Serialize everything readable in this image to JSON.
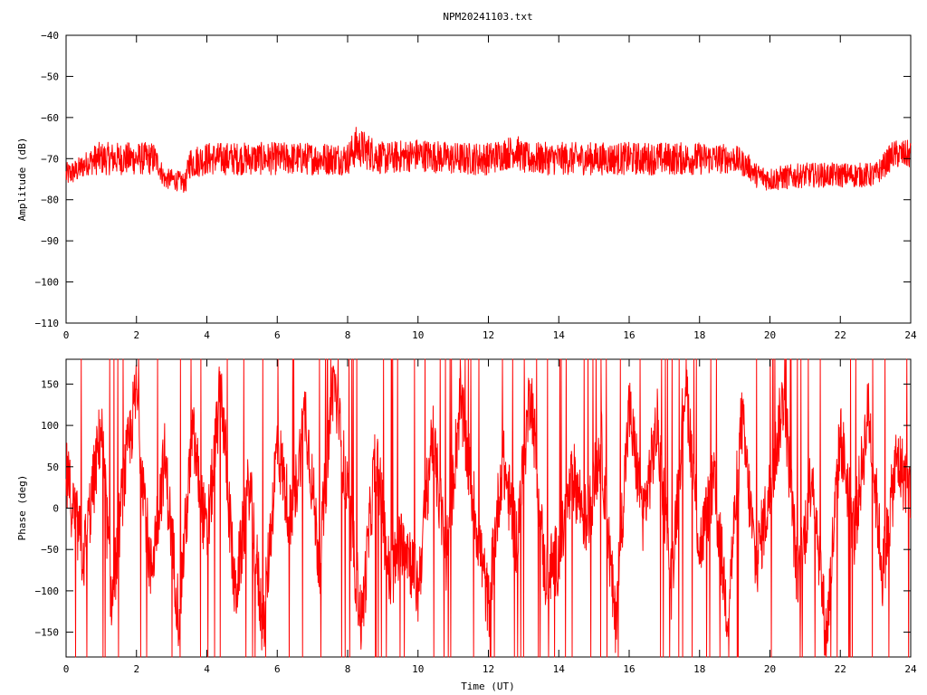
{
  "title": "NPM20241103.txt",
  "colors": {
    "series": "#ff0000",
    "axes": "#000000",
    "background": "#ffffff"
  },
  "chart_data": [
    {
      "type": "line",
      "ylabel": "Amplitude (dB)",
      "xlabel": "",
      "xlim": [
        0,
        24
      ],
      "ylim": [
        -110,
        -40
      ],
      "xticks": [
        0,
        2,
        4,
        6,
        8,
        10,
        12,
        14,
        16,
        18,
        20,
        22,
        24
      ],
      "yticks": [
        -110,
        -100,
        -90,
        -80,
        -70,
        -60,
        -50,
        -40
      ],
      "grid": false,
      "series": [
        {
          "x": [
            0,
            0.3,
            0.6,
            0.9,
            1.5,
            2.0,
            2.5,
            2.6,
            2.8,
            3.0,
            3.4,
            3.5,
            4.0,
            5.0,
            6.0,
            7.0,
            8.0,
            8.25,
            9.0,
            10.0,
            11.0,
            12.0,
            12.8,
            13.0,
            14.0,
            15.0,
            16.0,
            17.0,
            18.0,
            19.0,
            19.4,
            19.6,
            20.0,
            21.0,
            22.0,
            23.0,
            23.2,
            23.5,
            24.0
          ],
          "y": [
            -74,
            -73,
            -71,
            -70,
            -70,
            -70,
            -70,
            -71,
            -75,
            -75,
            -76,
            -71,
            -70,
            -70,
            -70,
            -70,
            -70,
            -67,
            -70,
            -69,
            -70,
            -70,
            -68,
            -70,
            -70,
            -70,
            -70,
            -70,
            -70,
            -70,
            -72,
            -74,
            -75,
            -74,
            -74,
            -74,
            -72,
            -69,
            -69
          ],
          "spread": [
            3,
            3,
            3,
            4,
            4,
            4,
            4,
            3,
            2.5,
            2.5,
            2.5,
            4,
            4,
            4,
            4,
            4,
            4,
            5,
            4,
            4,
            4,
            4,
            4,
            4,
            4,
            4,
            4,
            4,
            4,
            3.5,
            3,
            3,
            3,
            3,
            3,
            3,
            3,
            3.5,
            3.5
          ]
        }
      ]
    },
    {
      "type": "line",
      "ylabel": "Phase (deg)",
      "xlabel": "Time (UT)",
      "xlim": [
        0,
        24
      ],
      "ylim": [
        -180,
        180
      ],
      "xticks": [
        0,
        2,
        4,
        6,
        8,
        10,
        12,
        14,
        16,
        18,
        20,
        22,
        24
      ],
      "yticks": [
        -150,
        -100,
        -50,
        0,
        50,
        100,
        150
      ],
      "grid": false,
      "series": [
        {
          "x": [
            0,
            0.5,
            1.0,
            1.3,
            1.6,
            2.0,
            2.4,
            2.8,
            3.2,
            3.6,
            4.0,
            4.4,
            4.8,
            5.2,
            5.6,
            6.0,
            6.4,
            6.8,
            7.2,
            7.6,
            8.0,
            8.4,
            8.8,
            9.2,
            9.6,
            10.0,
            10.4,
            10.8,
            11.2,
            11.6,
            12.0,
            12.4,
            12.8,
            13.2,
            13.6,
            14.0,
            14.4,
            14.8,
            15.2,
            15.6,
            16.0,
            16.4,
            16.8,
            17.2,
            17.6,
            18.0,
            18.4,
            18.8,
            19.2,
            19.6,
            20.0,
            20.4,
            20.8,
            21.2,
            21.6,
            22.0,
            22.4,
            22.8,
            23.2,
            23.6,
            24.0
          ],
          "y": [
            40,
            -60,
            100,
            -120,
            20,
            140,
            -80,
            60,
            -130,
            90,
            -40,
            150,
            -110,
            30,
            -150,
            80,
            -20,
            120,
            -70,
            160,
            10,
            -140,
            70,
            -90,
            -30,
            -100,
            90,
            -60,
            130,
            0,
            -120,
            60,
            -40,
            150,
            -80,
            -60,
            40,
            -20,
            80,
            -140,
            120,
            -10,
            100,
            -90,
            160,
            -50,
            30,
            -130,
            110,
            -70,
            20,
            140,
            -100,
            50,
            -160,
            90,
            -30,
            120,
            -80,
            60,
            20
          ]
        }
      ]
    }
  ]
}
